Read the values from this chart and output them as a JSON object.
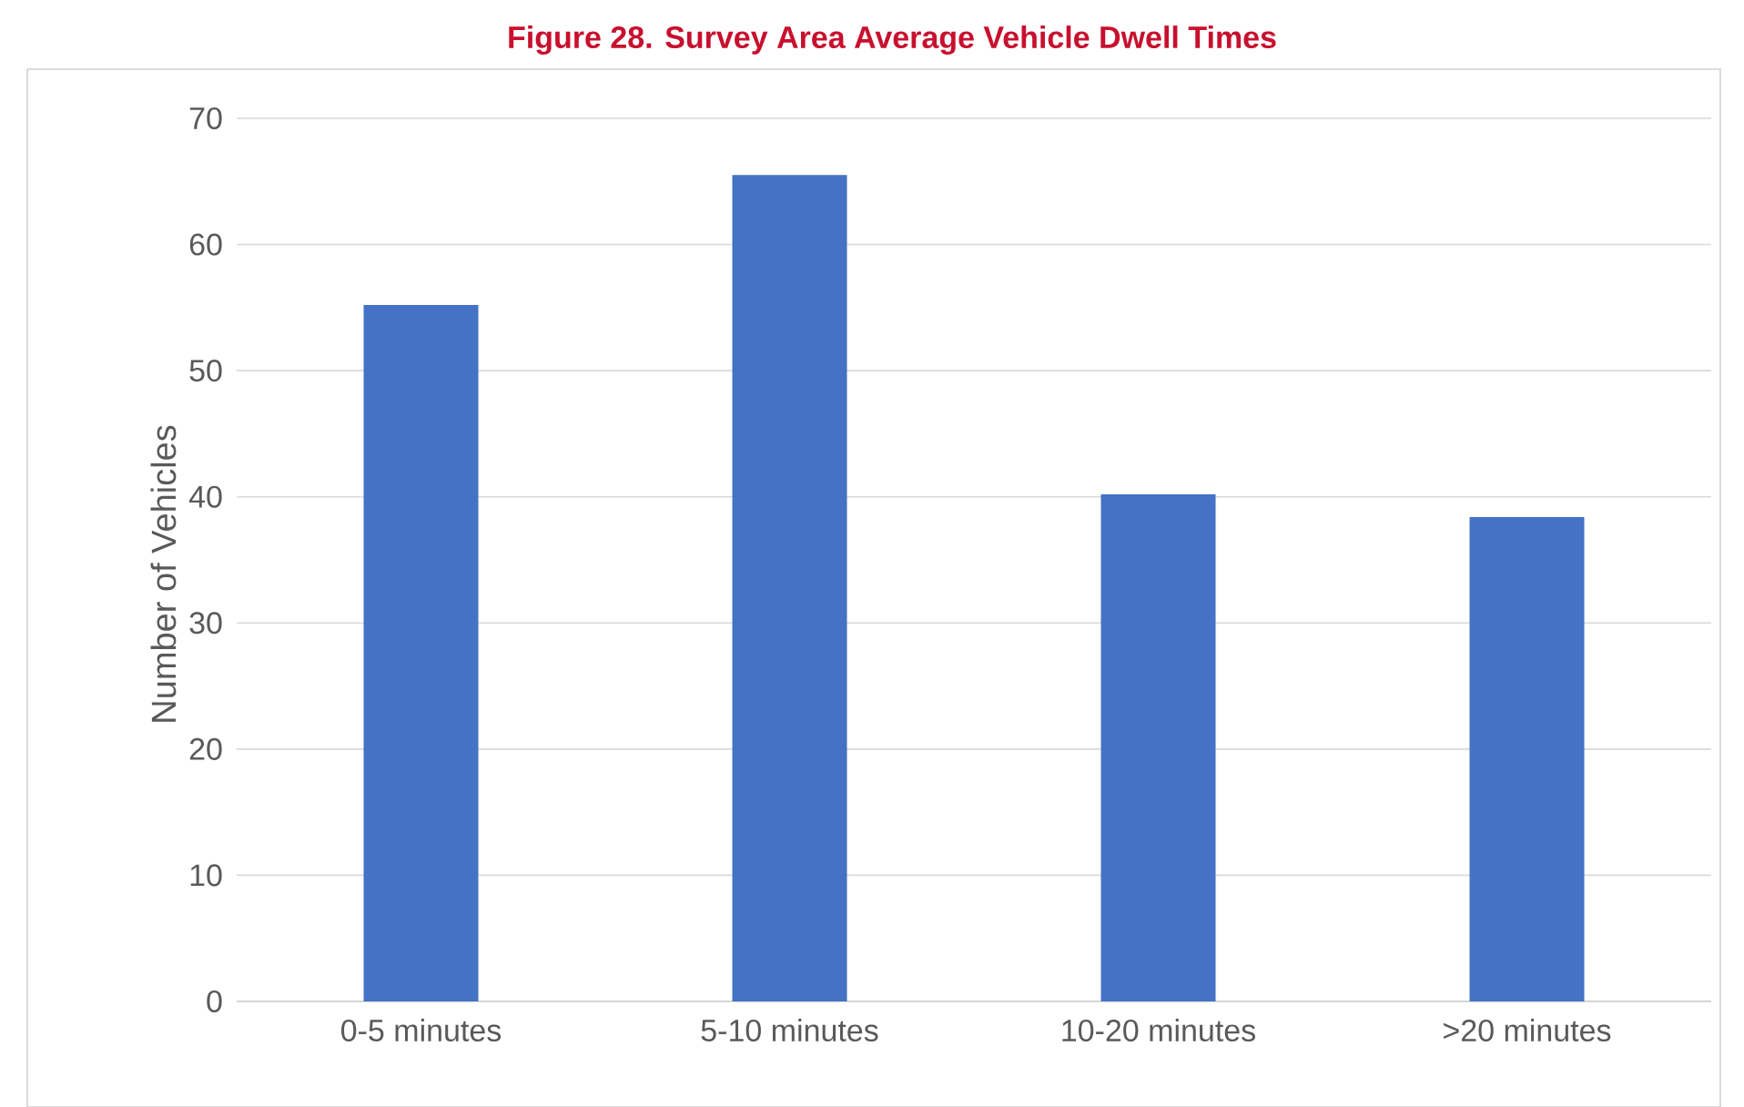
{
  "chart_data": {
    "type": "bar",
    "title": "Figure 28. Survey Area Average Vehicle Dwell Times",
    "ylabel": "Number of Vehicles",
    "categories": [
      "0-5 minutes",
      "5-10 minutes",
      "10-20 minutes",
      ">20 minutes"
    ],
    "values": [
      55.2,
      65.5,
      40.2,
      38.4
    ],
    "color": "#4472c4",
    "ylim": [
      0,
      70
    ],
    "yticks": [
      0,
      10,
      20,
      30,
      40,
      50,
      60,
      70
    ],
    "grid": "y"
  }
}
